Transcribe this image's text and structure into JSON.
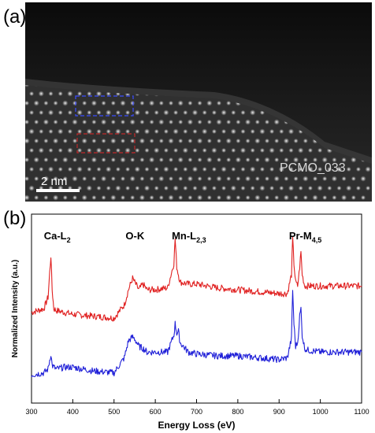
{
  "figure": {
    "panel_a_label": "(a)",
    "panel_b_label": "(b)"
  },
  "stem_image": {
    "scale_bar_label": "2 nm",
    "sample_label": "PCMO_033",
    "roi_colors": {
      "upper": "#3b4cff",
      "lower": "#c0282a"
    }
  },
  "chart_data": {
    "type": "line",
    "xlabel": "Energy Loss (eV)",
    "ylabel": "Normalized Intensity (a.u.)",
    "xlim": [
      300,
      1100
    ],
    "ylim": [
      0,
      1
    ],
    "xticks": [
      300,
      400,
      500,
      600,
      700,
      800,
      900,
      1000,
      1100
    ],
    "grid": false,
    "annotations": [
      {
        "label": "Ca-L",
        "sub": "2",
        "x": 330
      },
      {
        "label": "O-K",
        "sub": "",
        "x": 528
      },
      {
        "label": "Mn-L",
        "sub": "2,3",
        "x": 640
      },
      {
        "label": "Pr-M",
        "sub": "4,5",
        "x": 924
      }
    ],
    "series": [
      {
        "color": "#e02020",
        "x": [
          300,
          330,
          340,
          347,
          350,
          354,
          360,
          380,
          400,
          450,
          500,
          525,
          535,
          545,
          550,
          560,
          570,
          580,
          600,
          630,
          645,
          648,
          652,
          656,
          660,
          680,
          700,
          750,
          800,
          850,
          900,
          920,
          930,
          933,
          936,
          940,
          945,
          950,
          953,
          956,
          962,
          970,
          1000,
          1050,
          1100
        ],
        "y": [
          0.48,
          0.5,
          0.56,
          0.78,
          0.6,
          0.5,
          0.49,
          0.48,
          0.47,
          0.46,
          0.45,
          0.52,
          0.6,
          0.66,
          0.64,
          0.6,
          0.63,
          0.6,
          0.6,
          0.61,
          0.74,
          0.87,
          0.72,
          0.68,
          0.64,
          0.63,
          0.63,
          0.61,
          0.6,
          0.59,
          0.58,
          0.58,
          0.68,
          0.87,
          0.74,
          0.64,
          0.62,
          0.72,
          0.8,
          0.68,
          0.62,
          0.62,
          0.62,
          0.62,
          0.62
        ]
      },
      {
        "color": "#2020d8",
        "x": [
          300,
          330,
          340,
          347,
          350,
          354,
          360,
          380,
          400,
          450,
          500,
          525,
          535,
          545,
          550,
          560,
          570,
          580,
          600,
          630,
          645,
          648,
          652,
          656,
          660,
          680,
          700,
          750,
          800,
          850,
          900,
          920,
          930,
          933,
          936,
          940,
          945,
          950,
          953,
          956,
          962,
          970,
          1000,
          1050,
          1100
        ],
        "y": [
          0.15,
          0.16,
          0.18,
          0.26,
          0.2,
          0.19,
          0.18,
          0.19,
          0.19,
          0.17,
          0.16,
          0.24,
          0.33,
          0.35,
          0.34,
          0.3,
          0.29,
          0.27,
          0.27,
          0.27,
          0.36,
          0.42,
          0.37,
          0.38,
          0.32,
          0.27,
          0.26,
          0.25,
          0.25,
          0.24,
          0.23,
          0.24,
          0.34,
          0.6,
          0.42,
          0.3,
          0.32,
          0.46,
          0.5,
          0.36,
          0.29,
          0.28,
          0.27,
          0.27,
          0.27
        ]
      }
    ]
  }
}
